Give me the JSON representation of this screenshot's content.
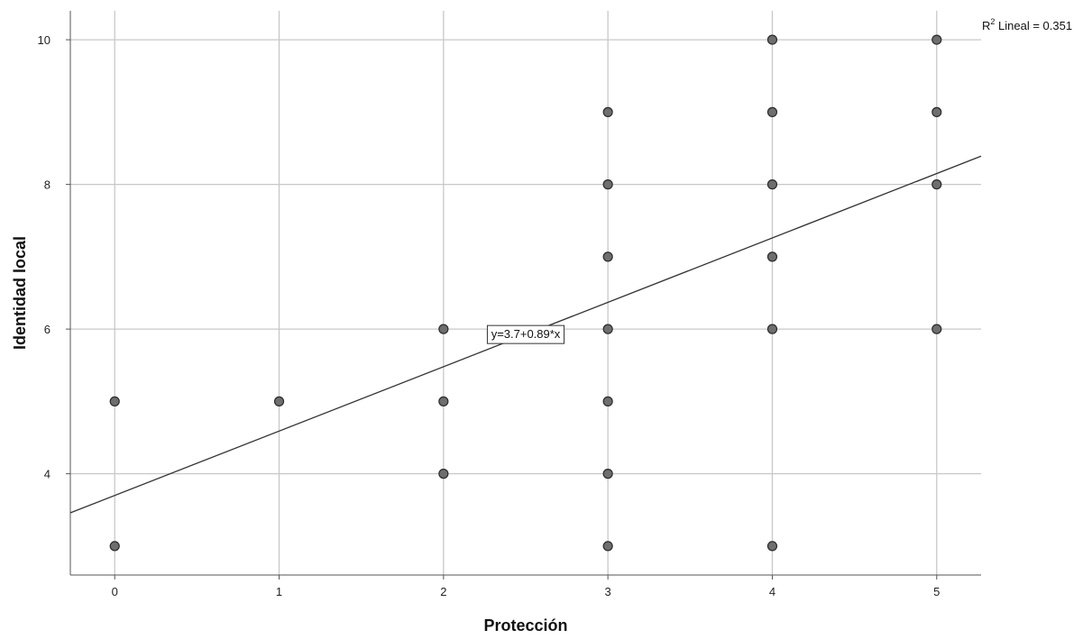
{
  "chart_data": {
    "type": "scatter",
    "xlabel": "Protección",
    "ylabel": "Identidad local",
    "xlim": [
      -0.27,
      5.27
    ],
    "ylim": [
      2.6,
      10.4
    ],
    "xticks": [
      "0",
      "1",
      "2",
      "3",
      "4",
      "5"
    ],
    "yticks": [
      "4",
      "6",
      "8",
      "10"
    ],
    "grid": true,
    "points": [
      {
        "x": 0,
        "y": 5
      },
      {
        "x": 0,
        "y": 3
      },
      {
        "x": 1,
        "y": 5
      },
      {
        "x": 2,
        "y": 6
      },
      {
        "x": 2,
        "y": 5
      },
      {
        "x": 2,
        "y": 4
      },
      {
        "x": 3,
        "y": 9
      },
      {
        "x": 3,
        "y": 8
      },
      {
        "x": 3,
        "y": 7
      },
      {
        "x": 3,
        "y": 6
      },
      {
        "x": 3,
        "y": 5
      },
      {
        "x": 3,
        "y": 4
      },
      {
        "x": 3,
        "y": 3
      },
      {
        "x": 4,
        "y": 10
      },
      {
        "x": 4,
        "y": 9
      },
      {
        "x": 4,
        "y": 8
      },
      {
        "x": 4,
        "y": 7
      },
      {
        "x": 4,
        "y": 6
      },
      {
        "x": 4,
        "y": 3
      },
      {
        "x": 5,
        "y": 10
      },
      {
        "x": 5,
        "y": 9
      },
      {
        "x": 5,
        "y": 8
      },
      {
        "x": 5,
        "y": 6
      }
    ],
    "fit_line": {
      "intercept": 3.7,
      "slope": 0.89,
      "equation": "y=3.7+0.89*x",
      "r2_prefix": "R",
      "r2_sup": "2",
      "r2_text": " Lineal = 0.351"
    },
    "colors": {
      "point_fill": "#6e6e6e",
      "point_stroke": "#2b2b2b",
      "grid": "#c8c8c8",
      "axis": "#555555",
      "fit_line": "#333333"
    }
  }
}
